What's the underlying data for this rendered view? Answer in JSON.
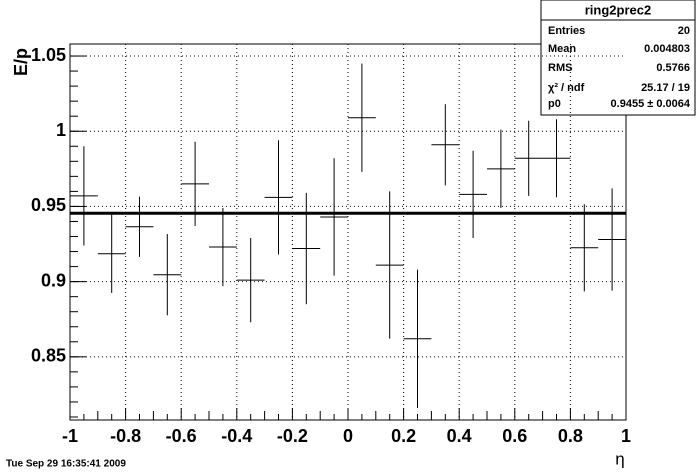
{
  "chart_data": {
    "type": "errorbar",
    "y_label": "E/p",
    "x_label": "η",
    "x": [
      -0.95,
      -0.85,
      -0.75,
      -0.65,
      -0.55,
      -0.45,
      -0.35,
      -0.25,
      -0.15,
      -0.05,
      0.05,
      0.15,
      0.25,
      0.35,
      0.45,
      0.55,
      0.65,
      0.75,
      0.85,
      0.95
    ],
    "values": [
      0.957,
      0.9185,
      0.9365,
      0.9046,
      0.965,
      0.923,
      0.901,
      0.956,
      0.922,
      0.943,
      1.009,
      0.911,
      0.862,
      0.991,
      0.958,
      0.975,
      0.982,
      0.982,
      0.9225,
      0.928
    ],
    "errors": [
      0.033,
      0.026,
      0.02,
      0.027,
      0.028,
      0.026,
      0.028,
      0.038,
      0.037,
      0.039,
      0.036,
      0.049,
      0.046,
      0.027,
      0.029,
      0.026,
      0.025,
      0.026,
      0.029,
      0.034
    ],
    "color": "#000000",
    "fit": {
      "p0": 0.9455
    },
    "xlim": [
      -1,
      1
    ],
    "xticks": [
      -1,
      -0.8,
      -0.6,
      -0.4,
      -0.2,
      0,
      0.2,
      0.4,
      0.6,
      0.8,
      1
    ],
    "ylim": [
      0.808,
      1.058
    ],
    "yticks": [
      0.85,
      0.9,
      0.95,
      1,
      1.05
    ],
    "grid": true,
    "stats": {
      "title": "ring2prec2",
      "rows": [
        {
          "name": "Entries",
          "value": "20"
        },
        {
          "name": "Mean",
          "value": "0.004803"
        },
        {
          "name": "RMS",
          "value": "0.5766"
        },
        {
          "name": "χ² / ndf",
          "value": "25.17 / 19"
        },
        {
          "name": "p0",
          "value": "0.9455 ± 0.0064"
        }
      ]
    },
    "timestamp": "Tue Sep 29 16:35:41 2009"
  }
}
